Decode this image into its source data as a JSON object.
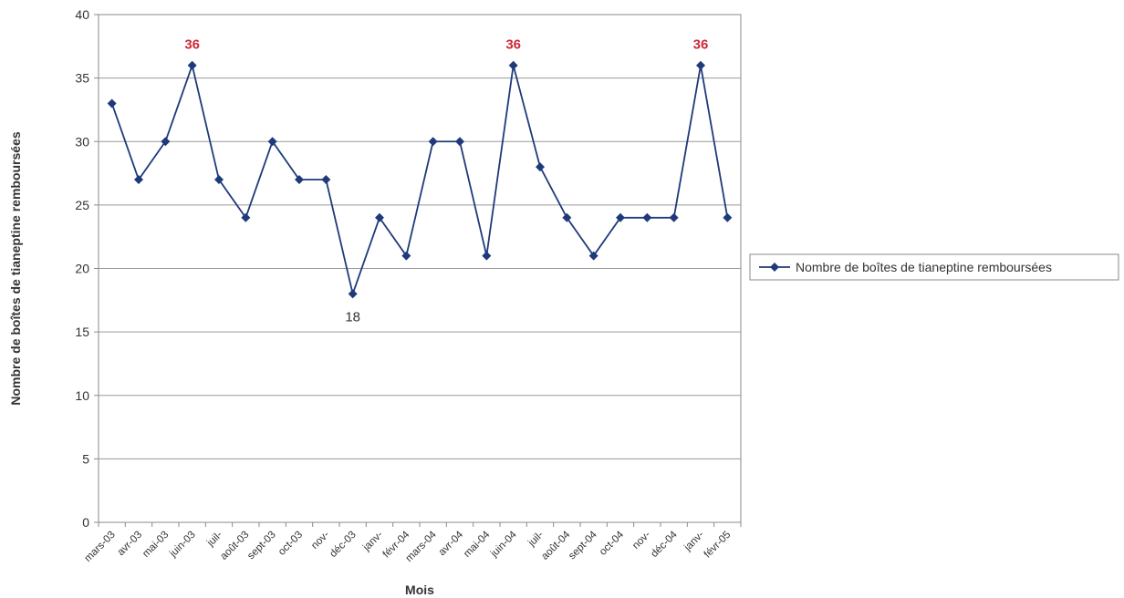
{
  "chart_data": {
    "type": "line",
    "xlabel": "Mois",
    "ylabel": "Nombre de boîtes de tianeptine remboursées",
    "ylim": [
      0,
      40
    ],
    "yticks": [
      0,
      5,
      10,
      15,
      20,
      25,
      30,
      35,
      40
    ],
    "grid": true,
    "legend_position": "right",
    "categories": [
      "mars-03",
      "avr-03",
      "mai-03",
      "juin-03",
      "juil-",
      "août-03",
      "sept-03",
      "oct-03",
      "nov-",
      "déc-03",
      "janv-",
      "févr-04",
      "mars-04",
      "avr-04",
      "mai-04",
      "juin-04",
      "juil-",
      "août-04",
      "sept-04",
      "oct-04",
      "nov-",
      "déc-04",
      "janv-",
      "févr-05"
    ],
    "series": [
      {
        "name": "Nombre de boîtes de tianeptine remboursées",
        "color": "#1f3a7a",
        "values": [
          33,
          27,
          30,
          36,
          27,
          24,
          30,
          27,
          27,
          18,
          24,
          21,
          30,
          30,
          21,
          36,
          28,
          24,
          21,
          24,
          24,
          24,
          36,
          24
        ]
      }
    ],
    "annotations": [
      {
        "index": 3,
        "text": "36",
        "color": "#cc2a3a",
        "position": "above",
        "bold": true
      },
      {
        "index": 9,
        "text": "18",
        "color": "#333333",
        "position": "below",
        "bold": false
      },
      {
        "index": 15,
        "text": "36",
        "color": "#cc2a3a",
        "position": "above",
        "bold": true
      },
      {
        "index": 22,
        "text": "36",
        "color": "#cc2a3a",
        "position": "above",
        "bold": true
      }
    ]
  }
}
